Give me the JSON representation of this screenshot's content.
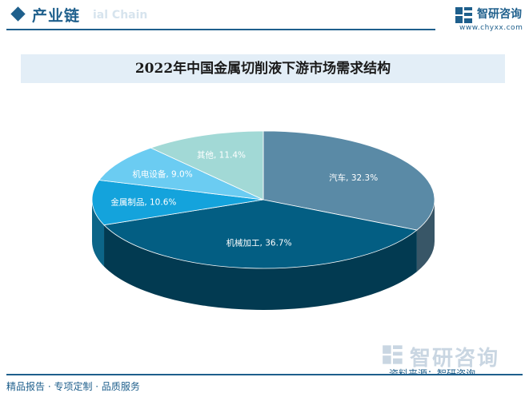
{
  "header": {
    "section_title": "产业链",
    "section_subtitle": "ial Chain",
    "brand": "智研咨询",
    "brand_url": "www.chyxx.com"
  },
  "chart_data": {
    "type": "pie",
    "title": "2022年中国金属切削液下游市场需求结构",
    "slices": [
      {
        "label": "汽车",
        "value": 32.3,
        "value_label": "32.3%",
        "color": "#5a8aa6"
      },
      {
        "label": "机械加工",
        "value": 36.7,
        "value_label": "36.7%",
        "color": "#035e83"
      },
      {
        "label": "金属制品",
        "value": 10.6,
        "value_label": "10.6%",
        "color": "#14a3dc"
      },
      {
        "label": "机电设备",
        "value": 9.0,
        "value_label": "9.0%",
        "color": "#6bccf2"
      },
      {
        "label": "其他",
        "value": 11.4,
        "value_label": "11.4%",
        "color": "#a2d9d6"
      }
    ]
  },
  "footer": {
    "tagline": "精品报告 · 专项定制 · 品质服务",
    "source": "资料来源：智研咨询",
    "watermark": "智研咨询"
  },
  "colors": {
    "brand": "#1e5f8c",
    "title_band": "#e3eef7"
  }
}
